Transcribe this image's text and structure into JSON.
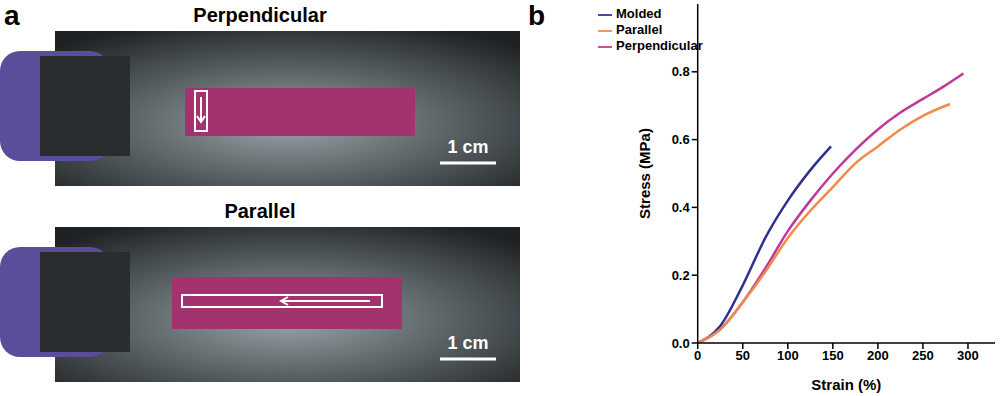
{
  "panel_a": {
    "label": "a",
    "photos": [
      {
        "title": "Perpendicular",
        "scale_bar": "1 cm"
      },
      {
        "title": "Parallel",
        "scale_bar": "1 cm"
      }
    ]
  },
  "panel_b": {
    "label": "b"
  },
  "chart_data": {
    "type": "line",
    "xlabel": "Strain (%)",
    "ylabel": "Stress (MPa)",
    "xlim": [
      0,
      330
    ],
    "xticks": [
      0,
      50,
      100,
      150,
      200,
      250,
      300
    ],
    "ylim": [
      0,
      1.0
    ],
    "yticks": [
      {
        "value": 0,
        "label": "0.0"
      },
      0.2,
      0.4,
      0.6,
      0.8
    ],
    "grid": false,
    "legend": "upper left",
    "series": [
      {
        "name": "Molded",
        "color": "#2e3192",
        "x": [
          0,
          25,
          50,
          75,
          100,
          125,
          148
        ],
        "values": [
          0,
          0.05,
          0.17,
          0.31,
          0.42,
          0.51,
          0.58
        ]
      },
      {
        "name": "Perpendicular",
        "color": "#c0399a",
        "x": [
          0,
          25,
          50,
          75,
          100,
          125,
          150,
          175,
          200,
          225,
          250,
          275,
          295
        ],
        "values": [
          0,
          0.04,
          0.12,
          0.22,
          0.33,
          0.42,
          0.5,
          0.57,
          0.63,
          0.68,
          0.72,
          0.76,
          0.795
        ]
      },
      {
        "name": "Parallel",
        "color": "#f08a4b",
        "x": [
          0,
          25,
          50,
          75,
          100,
          125,
          150,
          175,
          200,
          225,
          250,
          280
        ],
        "values": [
          0,
          0.04,
          0.12,
          0.21,
          0.31,
          0.39,
          0.46,
          0.53,
          0.58,
          0.63,
          0.67,
          0.705
        ]
      }
    ]
  }
}
